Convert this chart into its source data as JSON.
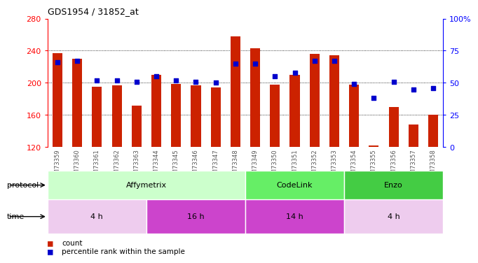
{
  "title": "GDS1954 / 31852_at",
  "samples": [
    "GSM73359",
    "GSM73360",
    "GSM73361",
    "GSM73362",
    "GSM73363",
    "GSM73344",
    "GSM73345",
    "GSM73346",
    "GSM73347",
    "GSM73348",
    "GSM73349",
    "GSM73350",
    "GSM73351",
    "GSM73352",
    "GSM73353",
    "GSM73354",
    "GSM73355",
    "GSM73356",
    "GSM73357",
    "GSM73358"
  ],
  "bar_values": [
    237,
    230,
    195,
    197,
    172,
    210,
    199,
    197,
    194,
    258,
    243,
    198,
    210,
    236,
    234,
    198,
    122,
    170,
    148,
    160
  ],
  "dot_values": [
    66,
    67,
    52,
    52,
    51,
    55,
    52,
    51,
    50,
    65,
    65,
    55,
    58,
    67,
    67,
    49,
    38,
    51,
    45,
    46
  ],
  "ylim_left": [
    120,
    280
  ],
  "ylim_right": [
    0,
    100
  ],
  "yticks_left": [
    120,
    160,
    200,
    240,
    280
  ],
  "yticks_right": [
    0,
    25,
    50,
    75,
    100
  ],
  "bar_color": "#cc2200",
  "dot_color": "#0000cc",
  "background_color": "#ffffff",
  "protocol_groups": [
    {
      "label": "Affymetrix",
      "start": 0,
      "end": 10,
      "color": "#ccffcc"
    },
    {
      "label": "CodeLink",
      "start": 10,
      "end": 15,
      "color": "#66ee66"
    },
    {
      "label": "Enzo",
      "start": 15,
      "end": 20,
      "color": "#44cc44"
    }
  ],
  "time_groups": [
    {
      "label": "4 h",
      "start": 0,
      "end": 5,
      "color": "#eeccee"
    },
    {
      "label": "16 h",
      "start": 5,
      "end": 10,
      "color": "#cc44cc"
    },
    {
      "label": "14 h",
      "start": 10,
      "end": 15,
      "color": "#cc44cc"
    },
    {
      "label": "4 h",
      "start": 15,
      "end": 20,
      "color": "#eeccee"
    }
  ],
  "legend_bar_label": "count",
  "legend_dot_label": "percentile rank within the sample",
  "protocol_label": "protocol",
  "time_label": "time",
  "grid_vals": [
    160,
    200,
    240
  ]
}
